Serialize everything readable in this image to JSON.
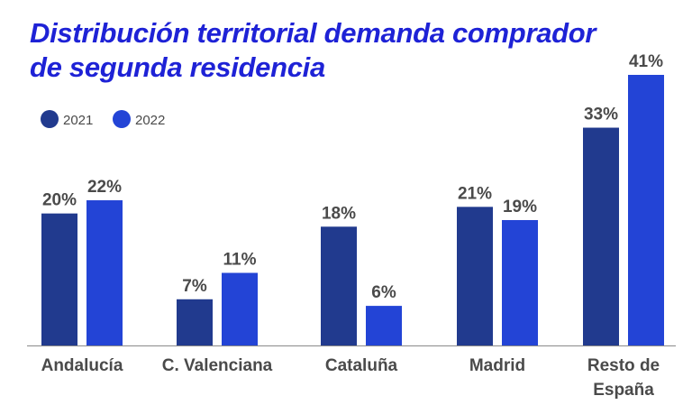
{
  "title": {
    "line1": "Distribución territorial demanda comprador",
    "line2": "de segunda residencia"
  },
  "colors": {
    "title": "#1e22d6",
    "series_2021": "#213a8e",
    "series_2022": "#2344d6",
    "labels": "#4a4a4a",
    "axis": "#8a8a8a"
  },
  "chart_data": {
    "type": "bar",
    "title": "Distribución territorial demanda comprador de segunda residencia",
    "categories": [
      [
        "Andalucía"
      ],
      [
        "C. Valenciana"
      ],
      [
        "Cataluña"
      ],
      [
        "Madrid"
      ],
      [
        "Resto de",
        "España"
      ]
    ],
    "series": [
      {
        "name": "2021",
        "values": [
          20,
          7,
          18,
          21,
          33
        ],
        "labels": [
          "20%",
          "7%",
          "18%",
          "21%",
          "33%"
        ]
      },
      {
        "name": "2022",
        "values": [
          22,
          11,
          6,
          19,
          41
        ],
        "labels": [
          "22%",
          "11%",
          "6%",
          "19%",
          "41%"
        ]
      }
    ],
    "unit": "%",
    "ylim": [
      0,
      41
    ],
    "legend": "top-left",
    "grid": false
  }
}
